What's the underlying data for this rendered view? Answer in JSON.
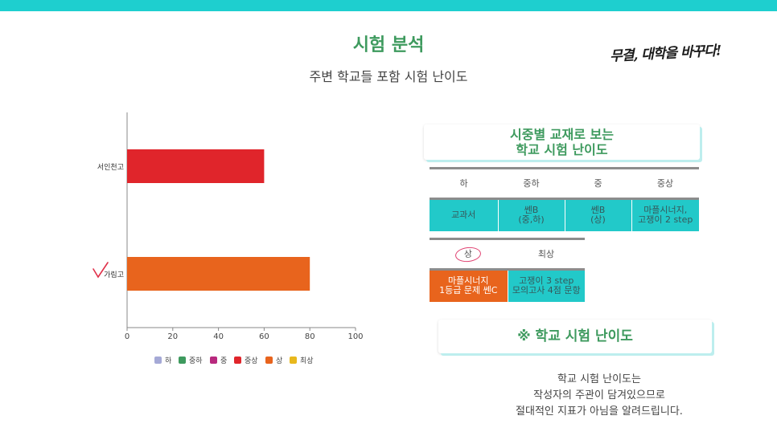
{
  "header": {
    "title": "시험 분석",
    "subtitle": "주변 학교들 포함 시험 난이도",
    "slogan": "무결, 대학을 바꾸다!"
  },
  "colors": {
    "top_bar": "#1ecfcf",
    "title": "#3e9a5e",
    "teal": "#22c9c9",
    "orange": "#e8641d",
    "red": "#e0252b"
  },
  "chart_data": {
    "type": "bar",
    "orientation": "horizontal",
    "categories": [
      "서인천고",
      "가림고"
    ],
    "series": [
      {
        "name": "중상",
        "color": "#e0252b",
        "values": [
          60,
          null
        ]
      },
      {
        "name": "상",
        "color": "#e8641d",
        "values": [
          null,
          80
        ]
      }
    ],
    "x_ticks": [
      0,
      20,
      40,
      60,
      80,
      100
    ],
    "xlim": [
      0,
      100
    ],
    "legend_position": "bottom",
    "legend": [
      {
        "label": "하",
        "color": "#a5a9d6"
      },
      {
        "label": "중하",
        "color": "#3e9a5e"
      },
      {
        "label": "중",
        "color": "#b8297e"
      },
      {
        "label": "중상",
        "color": "#e0252b"
      },
      {
        "label": "상",
        "color": "#e8641d"
      },
      {
        "label": "최상",
        "color": "#e8b81d"
      }
    ],
    "annotation": "checkmark next to 가림고",
    "grid": false
  },
  "textbook_card": {
    "line1": "시중별 교재로 보는",
    "line2": "학교 시험 난이도"
  },
  "table_top": {
    "headers": [
      "하",
      "중하",
      "중",
      "중상"
    ],
    "cells": [
      {
        "l1": "교과서",
        "l2": ""
      },
      {
        "l1": "쎈B",
        "l2": "(중,하)"
      },
      {
        "l1": "쎈B",
        "l2": "(상)"
      },
      {
        "l1": "마플시너지,",
        "l2": "고쟁이 2 step"
      }
    ]
  },
  "table_bottom": {
    "headers": [
      "상",
      "최상"
    ],
    "cells": [
      {
        "l1": "마플시너지",
        "l2": "1등급 문제 쎈C"
      },
      {
        "l1": "고쟁이 3 step",
        "l2": "모의고사 4점 문항"
      }
    ]
  },
  "difficulty_card": {
    "label": "※ 학교 시험 난이도"
  },
  "note": {
    "line1": "학교 시험 난이도는",
    "line2": "작성자의 주관이 담겨있으므로",
    "line3": "절대적인 지표가 아님을 알려드립니다."
  }
}
